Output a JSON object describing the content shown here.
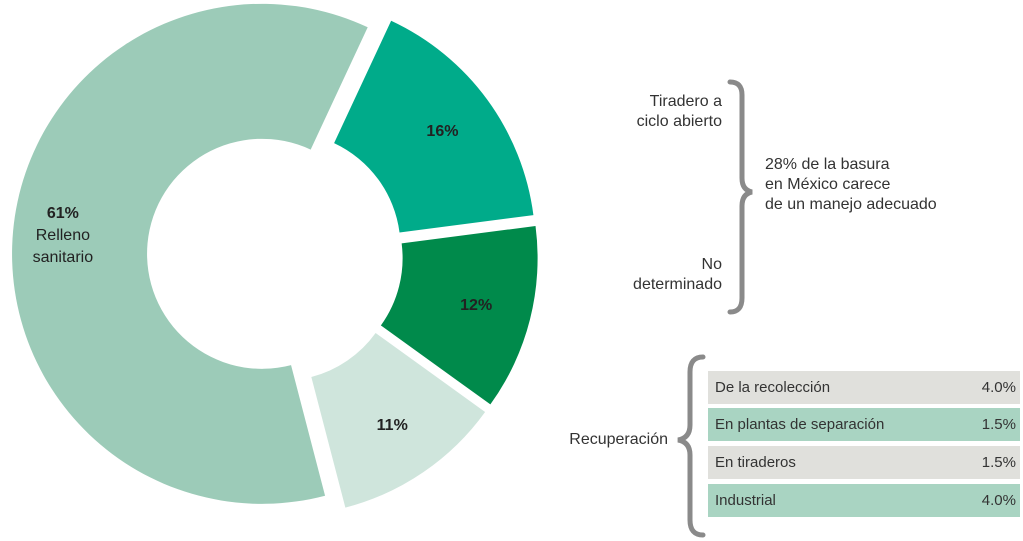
{
  "chart_data": {
    "type": "donut",
    "categories": [
      "Tiradero a\nciclo abierto",
      "No\ndeterminado",
      "Recuperación",
      "Relleno\nsanitario"
    ],
    "values": [
      16,
      12,
      11,
      61
    ],
    "value_labels": [
      "16%",
      "12%",
      "11%",
      "61%"
    ],
    "colors": [
      "#00ab8a",
      "#008a4b",
      "#cfe5dc",
      "#9ccbb8"
    ],
    "annotation": "28% de la basura\nen México carece\nde un manejo adecuado",
    "table": {
      "rows": [
        [
          "De la recolección",
          "4.0%"
        ],
        [
          "En plantas de separación",
          "1.5%"
        ],
        [
          "En tiraderos",
          "1.5%"
        ],
        [
          "Industrial",
          "4.0%"
        ]
      ]
    }
  }
}
